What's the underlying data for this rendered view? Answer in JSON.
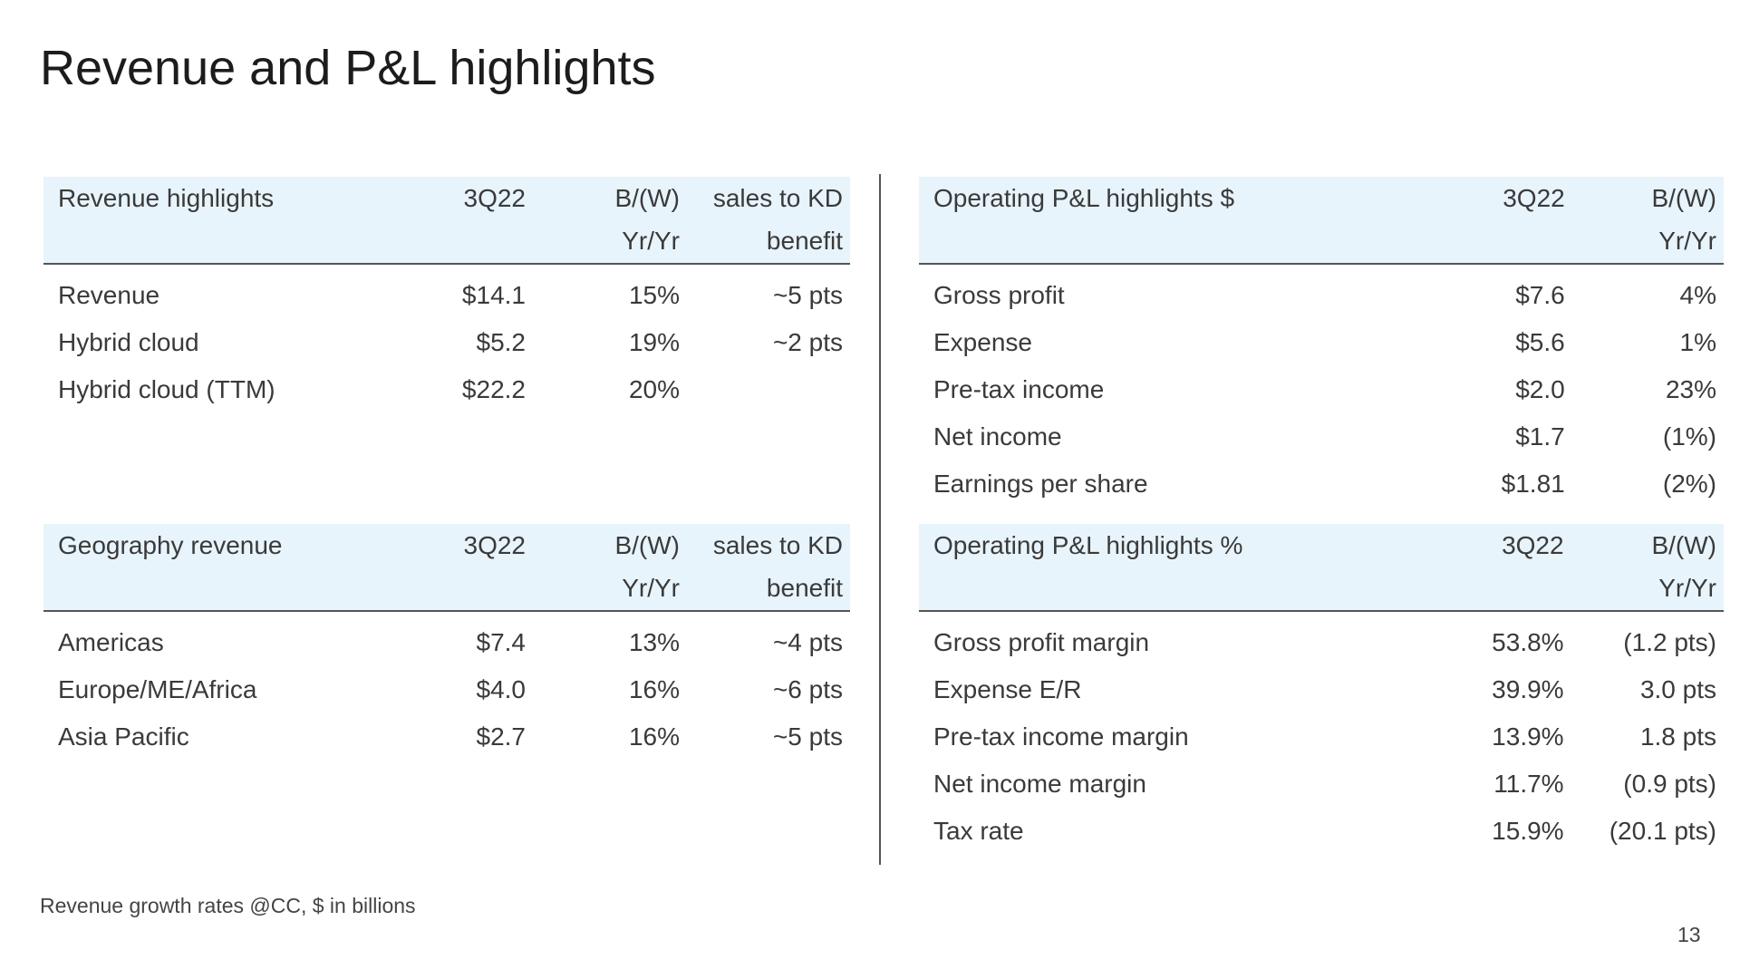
{
  "title": "Revenue and P&L highlights",
  "revenue_table": {
    "headers": [
      "Revenue highlights",
      "3Q22",
      "B/(W)\nYr/Yr",
      "sales to KD\nbenefit"
    ],
    "rows": [
      [
        "Revenue",
        "$14.1",
        "15%",
        "~5 pts"
      ],
      [
        "Hybrid cloud",
        "$5.2",
        "19%",
        "~2 pts"
      ],
      [
        "Hybrid cloud (TTM)",
        "$22.2",
        "20%",
        ""
      ]
    ]
  },
  "geography_table": {
    "headers": [
      "Geography revenue",
      "3Q22",
      "B/(W)\nYr/Yr",
      "sales to KD\nbenefit"
    ],
    "rows": [
      [
        "Americas",
        "$7.4",
        "13%",
        "~4 pts"
      ],
      [
        "Europe/ME/Africa",
        "$4.0",
        "16%",
        "~6 pts"
      ],
      [
        "Asia Pacific",
        "$2.7",
        "16%",
        "~5 pts"
      ]
    ]
  },
  "operating_dollar_table": {
    "headers": [
      "Operating P&L highlights $",
      "3Q22",
      "B/(W)\nYr/Yr"
    ],
    "rows": [
      [
        "Gross profit",
        "$7.6",
        "4%"
      ],
      [
        "Expense",
        "$5.6",
        "1%"
      ],
      [
        "Pre-tax income",
        "$2.0",
        "23%"
      ],
      [
        "Net income",
        "$1.7",
        "(1%)"
      ],
      [
        "Earnings per share",
        "$1.81",
        "(2%)"
      ]
    ]
  },
  "operating_pct_table": {
    "headers": [
      "Operating P&L highlights %",
      "3Q22",
      "B/(W)\nYr/Yr"
    ],
    "rows": [
      [
        "Gross profit margin",
        "53.8%",
        "(1.2 pts)"
      ],
      [
        "Expense E/R",
        "39.9%",
        "3.0 pts"
      ],
      [
        "Pre-tax income margin",
        "13.9%",
        "1.8 pts"
      ],
      [
        "Net income margin",
        "11.7%",
        "(0.9 pts)"
      ],
      [
        "Tax rate",
        "15.9%",
        "(20.1 pts)"
      ]
    ]
  },
  "footnote": "Revenue growth rates @CC, $ in billions",
  "page_number": "13",
  "colors": {
    "header_bg": "#e8f4fc",
    "rule": "#555555",
    "text": "#3a3a3a"
  }
}
